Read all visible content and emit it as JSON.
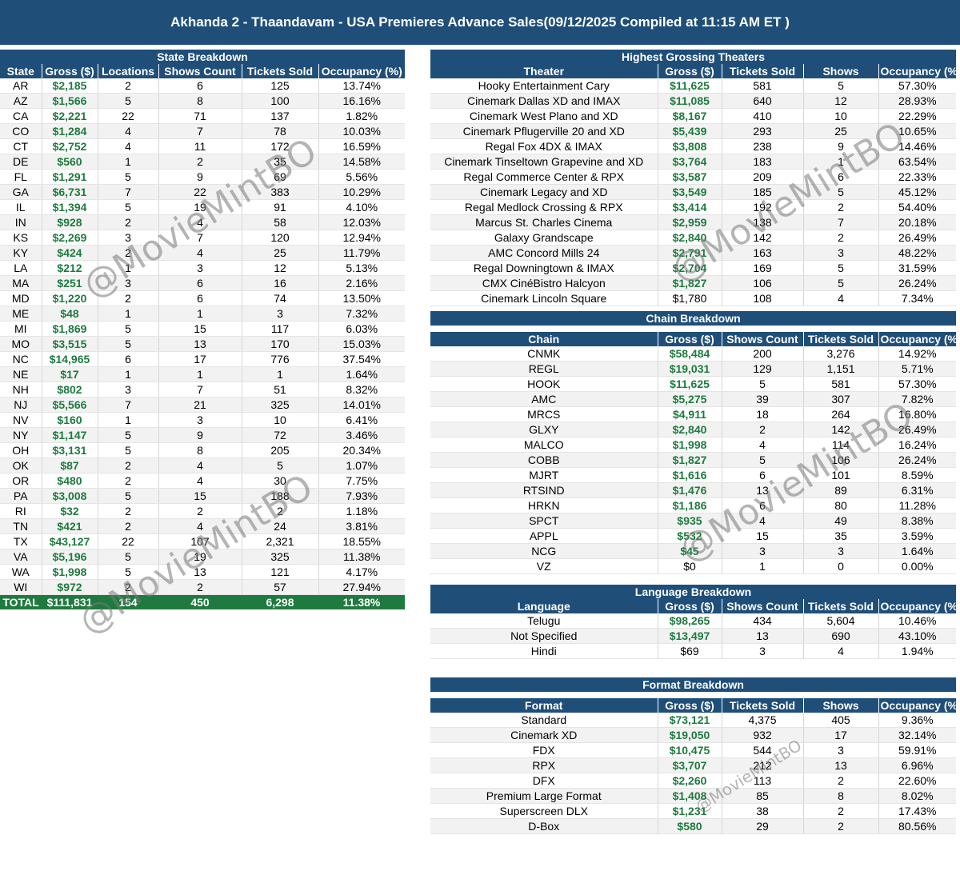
{
  "title": "Akhanda 2 - Thaandavam - USA Premieres Advance Sales(09/12/2025 Compiled at 11:15 AM ET )",
  "watermark": "@MovieMintBO",
  "colors": {
    "header_bg": "#1f4e79",
    "gross_green": "#1e7a3e",
    "total_bg": "#1e7a3e"
  },
  "state": {
    "title": "State Breakdown",
    "headers": [
      "State",
      "Gross ($)",
      "Locations",
      "Shows Count",
      "Tickets Sold",
      "Occupancy (%)"
    ],
    "rows": [
      [
        "AR",
        "$2,185",
        "2",
        "6",
        "125",
        "13.74%"
      ],
      [
        "AZ",
        "$1,566",
        "5",
        "8",
        "100",
        "16.16%"
      ],
      [
        "CA",
        "$2,221",
        "22",
        "71",
        "137",
        "1.82%"
      ],
      [
        "CO",
        "$1,284",
        "4",
        "7",
        "78",
        "10.03%"
      ],
      [
        "CT",
        "$2,752",
        "4",
        "11",
        "172",
        "16.59%"
      ],
      [
        "DE",
        "$560",
        "1",
        "2",
        "35",
        "14.58%"
      ],
      [
        "FL",
        "$1,291",
        "5",
        "9",
        "69",
        "5.56%"
      ],
      [
        "GA",
        "$6,731",
        "7",
        "22",
        "383",
        "10.29%"
      ],
      [
        "IL",
        "$1,394",
        "5",
        "19",
        "91",
        "4.10%"
      ],
      [
        "IN",
        "$928",
        "2",
        "4",
        "58",
        "12.03%"
      ],
      [
        "KS",
        "$2,269",
        "3",
        "7",
        "120",
        "12.94%"
      ],
      [
        "KY",
        "$424",
        "2",
        "4",
        "25",
        "11.79%"
      ],
      [
        "LA",
        "$212",
        "1",
        "3",
        "12",
        "5.13%"
      ],
      [
        "MA",
        "$251",
        "3",
        "6",
        "16",
        "2.16%"
      ],
      [
        "MD",
        "$1,220",
        "2",
        "6",
        "74",
        "13.50%"
      ],
      [
        "ME",
        "$48",
        "1",
        "1",
        "3",
        "7.32%"
      ],
      [
        "MI",
        "$1,869",
        "5",
        "15",
        "117",
        "6.03%"
      ],
      [
        "MO",
        "$3,515",
        "5",
        "13",
        "170",
        "15.03%"
      ],
      [
        "NC",
        "$14,965",
        "6",
        "17",
        "776",
        "37.54%"
      ],
      [
        "NE",
        "$17",
        "1",
        "1",
        "1",
        "1.64%"
      ],
      [
        "NH",
        "$802",
        "3",
        "7",
        "51",
        "8.32%"
      ],
      [
        "NJ",
        "$5,566",
        "7",
        "21",
        "325",
        "14.01%"
      ],
      [
        "NV",
        "$160",
        "1",
        "3",
        "10",
        "6.41%"
      ],
      [
        "NY",
        "$1,147",
        "5",
        "9",
        "72",
        "3.46%"
      ],
      [
        "OH",
        "$3,131",
        "5",
        "8",
        "205",
        "20.34%"
      ],
      [
        "OK",
        "$87",
        "2",
        "4",
        "5",
        "1.07%"
      ],
      [
        "OR",
        "$480",
        "2",
        "4",
        "30",
        "7.75%"
      ],
      [
        "PA",
        "$3,008",
        "5",
        "15",
        "188",
        "7.93%"
      ],
      [
        "RI",
        "$32",
        "2",
        "2",
        "2",
        "1.18%"
      ],
      [
        "TN",
        "$421",
        "2",
        "4",
        "24",
        "3.81%"
      ],
      [
        "TX",
        "$43,127",
        "22",
        "107",
        "2,321",
        "18.55%"
      ],
      [
        "VA",
        "$5,196",
        "5",
        "19",
        "325",
        "11.38%"
      ],
      [
        "WA",
        "$1,998",
        "5",
        "13",
        "121",
        "4.17%"
      ],
      [
        "WI",
        "$972",
        "2",
        "2",
        "57",
        "27.94%"
      ]
    ],
    "total": [
      "TOTAL",
      "$111,831",
      "154",
      "450",
      "6,298",
      "11.38%"
    ]
  },
  "theaters": {
    "title": "Highest Grossing Theaters",
    "headers": [
      "Theater",
      "Gross ($)",
      "Tickets Sold",
      "Shows",
      "Occupancy (%)"
    ],
    "rows": [
      [
        "Hooky Entertainment Cary",
        "$11,625",
        "581",
        "5",
        "57.30%"
      ],
      [
        "Cinemark Dallas XD and IMAX",
        "$11,085",
        "640",
        "12",
        "28.93%"
      ],
      [
        "Cinemark West Plano and XD",
        "$8,167",
        "410",
        "10",
        "22.29%"
      ],
      [
        "Cinemark Pflugerville 20 and XD",
        "$5,439",
        "293",
        "25",
        "10.65%"
      ],
      [
        "Regal Fox 4DX & IMAX",
        "$3,808",
        "238",
        "9",
        "14.46%"
      ],
      [
        "Cinemark Tinseltown Grapevine and XD",
        "$3,764",
        "183",
        "1",
        "63.54%"
      ],
      [
        "Regal Commerce Center & RPX",
        "$3,587",
        "209",
        "6",
        "22.33%"
      ],
      [
        "Cinemark Legacy and XD",
        "$3,549",
        "185",
        "5",
        "45.12%"
      ],
      [
        "Regal Medlock Crossing & RPX",
        "$3,414",
        "192",
        "2",
        "54.40%"
      ],
      [
        "Marcus St. Charles Cinema",
        "$2,959",
        "138",
        "7",
        "20.18%"
      ],
      [
        "Galaxy Grandscape",
        "$2,840",
        "142",
        "2",
        "26.49%"
      ],
      [
        "AMC Concord Mills 24",
        "$2,791",
        "163",
        "3",
        "48.22%"
      ],
      [
        "Regal Downingtown & IMAX",
        "$2,704",
        "169",
        "5",
        "31.59%"
      ],
      [
        "CMX CinéBistro Halcyon",
        "$1,827",
        "106",
        "5",
        "26.24%"
      ],
      [
        "Cinemark Lincoln Square",
        "$1,780",
        "108",
        "4",
        "7.34%"
      ]
    ]
  },
  "chain": {
    "title": "Chain Breakdown",
    "headers": [
      "Chain",
      "Gross ($)",
      "Shows Count",
      "Tickets Sold",
      "Occupancy (%)"
    ],
    "rows": [
      [
        "CNMK",
        "$58,484",
        "200",
        "3,276",
        "14.92%"
      ],
      [
        "REGL",
        "$19,031",
        "129",
        "1,151",
        "5.71%"
      ],
      [
        "HOOK",
        "$11,625",
        "5",
        "581",
        "57.30%"
      ],
      [
        "AMC",
        "$5,275",
        "39",
        "307",
        "7.82%"
      ],
      [
        "MRCS",
        "$4,911",
        "18",
        "264",
        "16.80%"
      ],
      [
        "GLXY",
        "$2,840",
        "2",
        "142",
        "26.49%"
      ],
      [
        "MALCO",
        "$1,998",
        "4",
        "114",
        "16.24%"
      ],
      [
        "COBB",
        "$1,827",
        "5",
        "106",
        "26.24%"
      ],
      [
        "MJRT",
        "$1,616",
        "6",
        "101",
        "8.59%"
      ],
      [
        "RTSIND",
        "$1,476",
        "13",
        "89",
        "6.31%"
      ],
      [
        "HRKN",
        "$1,186",
        "6",
        "80",
        "11.28%"
      ],
      [
        "SPCT",
        "$935",
        "4",
        "49",
        "8.38%"
      ],
      [
        "APPL",
        "$532",
        "15",
        "35",
        "3.59%"
      ],
      [
        "NCG",
        "$45",
        "3",
        "3",
        "1.64%"
      ],
      [
        "VZ",
        "$0",
        "1",
        "0",
        "0.00%"
      ]
    ]
  },
  "language": {
    "title": "Language Breakdown",
    "headers": [
      "Language",
      "Gross ($)",
      "Shows Count",
      "Tickets Sold",
      "Occupancy (%)"
    ],
    "rows": [
      [
        "Telugu",
        "$98,265",
        "434",
        "5,604",
        "10.46%"
      ],
      [
        "Not Specified",
        "$13,497",
        "13",
        "690",
        "43.10%"
      ],
      [
        "Hindi",
        "$69",
        "3",
        "4",
        "1.94%"
      ]
    ]
  },
  "format": {
    "title": "Format Breakdown",
    "headers": [
      "Format",
      "Gross ($)",
      "Tickets Sold",
      "Shows",
      "Occupancy (%)"
    ],
    "rows": [
      [
        "Standard",
        "$73,121",
        "4,375",
        "405",
        "9.36%"
      ],
      [
        "Cinemark XD",
        "$19,050",
        "932",
        "17",
        "32.14%"
      ],
      [
        "FDX",
        "$10,475",
        "544",
        "3",
        "59.91%"
      ],
      [
        "RPX",
        "$3,707",
        "212",
        "13",
        "6.96%"
      ],
      [
        "DFX",
        "$2,260",
        "113",
        "2",
        "22.60%"
      ],
      [
        "Premium Large Format",
        "$1,408",
        "85",
        "8",
        "8.02%"
      ],
      [
        "Superscreen DLX",
        "$1,231",
        "38",
        "2",
        "17.43%"
      ],
      [
        "D-Box",
        "$580",
        "29",
        "2",
        "80.56%"
      ]
    ]
  }
}
